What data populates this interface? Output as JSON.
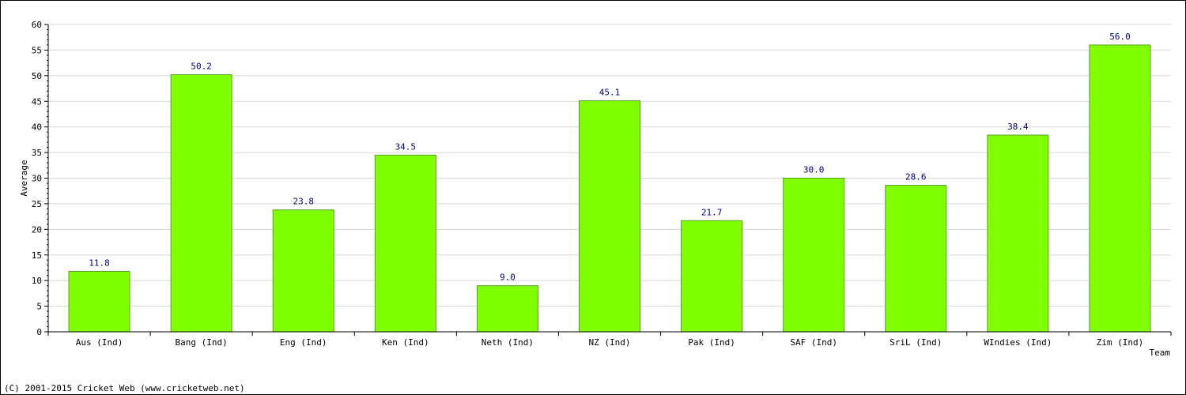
{
  "chart_data": {
    "type": "bar",
    "categories": [
      "Aus (Ind)",
      "Bang (Ind)",
      "Eng (Ind)",
      "Ken (Ind)",
      "Neth (Ind)",
      "NZ (Ind)",
      "Pak (Ind)",
      "SAF (Ind)",
      "SriL (Ind)",
      "WIndies (Ind)",
      "Zim (Ind)"
    ],
    "values": [
      11.8,
      50.2,
      23.8,
      34.5,
      9.0,
      45.1,
      21.7,
      30.0,
      28.6,
      38.4,
      56.0
    ],
    "value_labels": [
      "11.8",
      "50.2",
      "23.8",
      "34.5",
      "9.0",
      "45.1",
      "21.7",
      "30.0",
      "28.6",
      "38.4",
      "56.0"
    ],
    "xlabel": "Team",
    "ylabel": "Average",
    "ylim": [
      0,
      60
    ],
    "yticks": [
      "0",
      "5",
      "10",
      "15",
      "20",
      "25",
      "30",
      "35",
      "40",
      "45",
      "50",
      "55",
      "60"
    ],
    "grid": true,
    "colors": {
      "bar": "#80ff00",
      "bar_edge": "#5a9e2a",
      "grid": "#d8d8d8",
      "data_label": "#000080"
    }
  },
  "footer": {
    "copyright": "(C) 2001-2015 Cricket Web (www.cricketweb.net)"
  }
}
